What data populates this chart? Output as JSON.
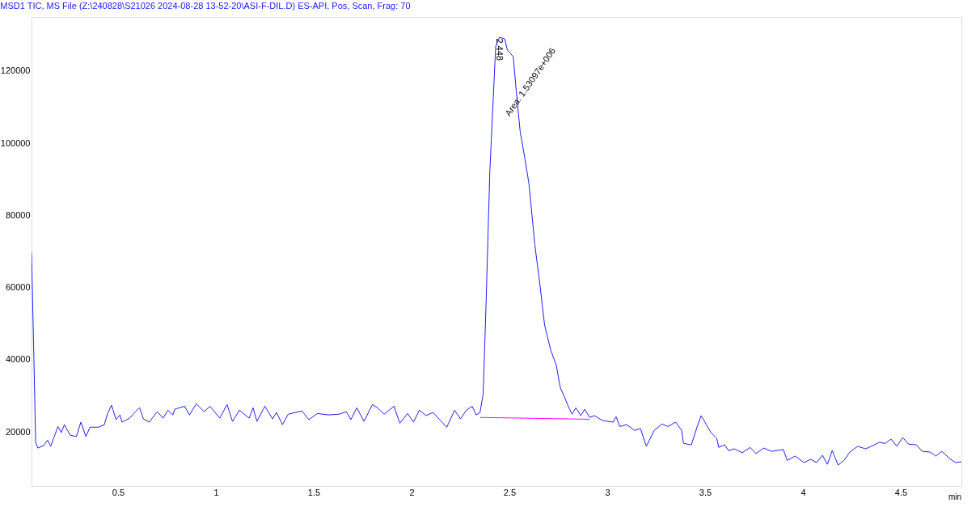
{
  "chart_data": {
    "type": "line",
    "title": "MSD1 TIC, MS File (Z:\\240828\\S21026 2024-08-28 13-52-20\\ASI-F-DIL.D)   ES-API, Pos, Scan, Frag: 70",
    "xlabel": "min",
    "xlim": [
      0.058,
      4.81
    ],
    "xticks": [
      0.5,
      1,
      1.5,
      2,
      2.5,
      3,
      3.5,
      4,
      4.5
    ],
    "ylim": [
      5000,
      135000
    ],
    "yticks": [
      20000,
      40000,
      60000,
      80000,
      100000,
      120000
    ],
    "grid": false,
    "marker": "none",
    "line_style": "solid",
    "annotations": [
      {
        "text": "2.448",
        "x": 2.448,
        "y": 126000
      },
      "Area: 1.53097e+006"
    ],
    "series": [
      {
        "color": "#1f1fff",
        "x": [
          0.058,
          0.07,
          0.079,
          0.09,
          0.12,
          0.14,
          0.156,
          0.193,
          0.21,
          0.226,
          0.255,
          0.287,
          0.31,
          0.336,
          0.357,
          0.4,
          0.43,
          0.447,
          0.467,
          0.49,
          0.51,
          0.52,
          0.56,
          0.58,
          0.61,
          0.63,
          0.66,
          0.7,
          0.73,
          0.755,
          0.78,
          0.79,
          0.84,
          0.865,
          0.9,
          0.94,
          0.97,
          1.02,
          1.057,
          1.085,
          1.12,
          1.17,
          1.19,
          1.21,
          1.25,
          1.29,
          1.31,
          1.34,
          1.37,
          1.44,
          1.475,
          1.52,
          1.575,
          1.63,
          1.667,
          1.69,
          1.72,
          1.757,
          1.8,
          1.83,
          1.86,
          1.91,
          1.94,
          1.98,
          2.01,
          2.04,
          2.075,
          2.11,
          2.14,
          2.18,
          2.22,
          2.25,
          2.28,
          2.31,
          2.33,
          2.35,
          2.366,
          2.38,
          2.4,
          2.43,
          2.45,
          2.476,
          2.49,
          2.52,
          2.535,
          2.555,
          2.58,
          2.6,
          2.63,
          2.656,
          2.68,
          2.71,
          2.74,
          2.76,
          2.78,
          2.8,
          2.82,
          2.84,
          2.865,
          2.885,
          2.91,
          2.935,
          2.955,
          2.98,
          3.03,
          3.045,
          3.065,
          3.1,
          3.14,
          3.17,
          3.2,
          3.24,
          3.28,
          3.31,
          3.35,
          3.38,
          3.39,
          3.43,
          3.46,
          3.48,
          3.495,
          3.53,
          3.56,
          3.57,
          3.6,
          3.62,
          3.65,
          3.69,
          3.73,
          3.76,
          3.8,
          3.84,
          3.9,
          3.92,
          3.96,
          4.005,
          4.04,
          4.07,
          4.1,
          4.125,
          4.15,
          4.18,
          4.21,
          4.24,
          4.28,
          4.32,
          4.35,
          4.39,
          4.42,
          4.45,
          4.48,
          4.51,
          4.54,
          4.58,
          4.61,
          4.65,
          4.68,
          4.71,
          4.75,
          4.78,
          4.81
        ],
        "values": [
          69700,
          40600,
          17100,
          15500,
          16200,
          17700,
          16000,
          21500,
          19800,
          22000,
          19100,
          18700,
          22700,
          18700,
          21300,
          21300,
          22000,
          25100,
          27400,
          23400,
          24700,
          22700,
          23800,
          25100,
          26700,
          23600,
          22700,
          25600,
          23800,
          26000,
          24700,
          26300,
          27100,
          24700,
          27800,
          25600,
          27100,
          23800,
          27600,
          22900,
          26000,
          23800,
          26700,
          22900,
          27100,
          23600,
          25400,
          22000,
          24900,
          25800,
          23400,
          25100,
          24700,
          24900,
          25600,
          23400,
          26700,
          22900,
          27600,
          26500,
          24900,
          27100,
          22400,
          25100,
          22700,
          26000,
          24500,
          25400,
          23600,
          21300,
          26000,
          23600,
          26000,
          27100,
          24700,
          25400,
          30500,
          54000,
          92100,
          126900,
          129400,
          128900,
          125800,
          124000,
          114500,
          103300,
          95500,
          88800,
          71900,
          60800,
          49600,
          42900,
          38400,
          32300,
          29900,
          27200,
          24900,
          26700,
          24500,
          26300,
          24000,
          24500,
          23800,
          23100,
          22700,
          24200,
          21500,
          22000,
          20400,
          20900,
          16000,
          20400,
          22200,
          21500,
          22700,
          20400,
          16800,
          16400,
          21500,
          24500,
          23100,
          19800,
          18200,
          15700,
          16400,
          14800,
          15300,
          14200,
          15700,
          14000,
          15500,
          14600,
          15100,
          12100,
          13300,
          11500,
          12400,
          11500,
          13500,
          11000,
          14800,
          10800,
          12100,
          14400,
          16000,
          15300,
          16000,
          17100,
          16800,
          18000,
          16000,
          18400,
          16600,
          16400,
          14600,
          14400,
          13300,
          14600,
          12600,
          11500,
          11700
        ]
      },
      {
        "color": "#ff00ff",
        "x": [
          2.35,
          2.91
        ],
        "values": [
          24000,
          23500
        ]
      }
    ]
  }
}
